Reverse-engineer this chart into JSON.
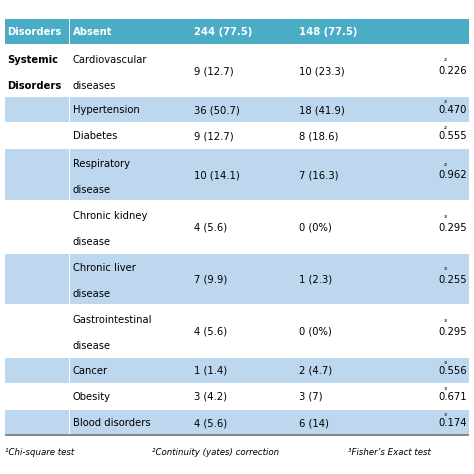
{
  "rows": [
    {
      "col0": "Disorders",
      "col1": "Absent",
      "col2": "244 (77.5)",
      "col3": "148 (77.5)",
      "col4": "",
      "bg": "#4BACC6",
      "is_header": true
    },
    {
      "col0": "Systemic\nDisorders",
      "col1": "Cardiovascular\ndiseases",
      "col2": "9 (12.7)",
      "col3": "10 (23.3)",
      "col4": "²0.226",
      "bg": "#FFFFFF",
      "is_header": false
    },
    {
      "col0": "",
      "col1": "Hypertension",
      "col2": "36 (50.7)",
      "col3": "18 (41.9)",
      "col4": "²0.470",
      "bg": "#BDD7EE",
      "is_header": false
    },
    {
      "col0": "",
      "col1": "Diabetes",
      "col2": "9 (12.7)",
      "col3": "8 (18.6)",
      "col4": "²0.555",
      "bg": "#FFFFFF",
      "is_header": false
    },
    {
      "col0": "",
      "col1": "Respiratory\ndisease",
      "col2": "10 (14.1)",
      "col3": "7 (16.3)",
      "col4": "²0.962",
      "bg": "#BDD7EE",
      "is_header": false
    },
    {
      "col0": "",
      "col1": "Chronic kidney\ndisease",
      "col2": "4 (5.6)",
      "col3": "0 (0%)",
      "col4": "³0.295",
      "bg": "#FFFFFF",
      "is_header": false
    },
    {
      "col0": "",
      "col1": "Chronic liver\ndisease",
      "col2": "7 (9.9)",
      "col3": "1 (2.3)",
      "col4": "³0.255",
      "bg": "#BDD7EE",
      "is_header": false
    },
    {
      "col0": "",
      "col1": "Gastrointestinal\ndisease",
      "col2": "4 (5.6)",
      "col3": "0 (0%)",
      "col4": "³0.295",
      "bg": "#FFFFFF",
      "is_header": false
    },
    {
      "col0": "",
      "col1": "Cancer",
      "col2": "1 (1.4)",
      "col3": "2 (4.7)",
      "col4": "³0.556",
      "bg": "#BDD7EE",
      "is_header": false
    },
    {
      "col0": "",
      "col1": "Obesity",
      "col2": "3 (4.2)",
      "col3": "3 (7)",
      "col4": "³0.671",
      "bg": "#FFFFFF",
      "is_header": false
    },
    {
      "col0": "",
      "col1": "Blood disorders",
      "col2": "4 (5.6)",
      "col3": "6 (14)",
      "col4": "³0.174",
      "bg": "#BDD7EE",
      "is_header": false
    }
  ],
  "footnote1": "¹Chi-square test",
  "footnote2": "²Continuity (yates) correction",
  "footnote3": "³Fisher’s Exact test",
  "header_bg": "#4BACC6",
  "light_blue": "#BDD7EE",
  "white": "#FFFFFF"
}
